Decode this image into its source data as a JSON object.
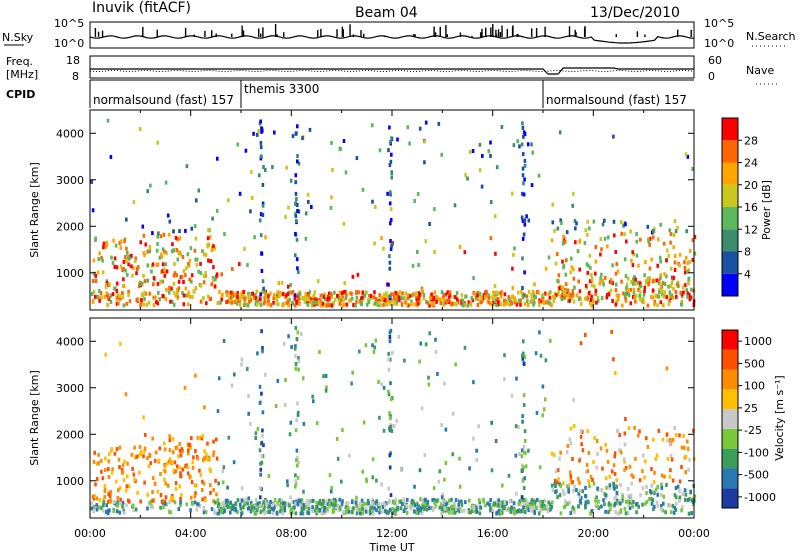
{
  "header": {
    "station": "Inuvik (fitACF)",
    "beam": "Beam 04",
    "date": "13/Dec/2010"
  },
  "panels": {
    "nsky": {
      "label": "N.Sky",
      "tick_top": "10^5",
      "tick_bottom": "10^0",
      "right_label": "N.Search",
      "right_tick_top": "10^5",
      "right_tick_bottom": "10^0"
    },
    "freq": {
      "label_line1": "Freq.",
      "label_line2": "[MHz]",
      "tick_top": "18",
      "tick_bottom": "8",
      "right_label": "Nave",
      "right_tick_top": "60",
      "right_tick_bottom": "0"
    },
    "cpid": {
      "label": "CPID",
      "segments": [
        {
          "label": "normalsound (fast) 157",
          "start_hour": 0
        },
        {
          "label": "themis 3300",
          "start_hour": 6
        },
        {
          "label": "normalsound (fast) 157",
          "start_hour": 18
        }
      ]
    }
  },
  "chart_data": [
    {
      "type": "heatmap",
      "name": "power",
      "ylabel": "Slant Range [km]",
      "xlabel": "",
      "ylim": [
        200,
        4500
      ],
      "xlim_hours": [
        0,
        24
      ],
      "y_ticks": [
        "1000",
        "2000",
        "3000",
        "4000"
      ],
      "colorbar": {
        "label": "Power [dB]",
        "ticks": [
          "4",
          "8",
          "12",
          "16",
          "20",
          "24",
          "28"
        ],
        "colors": [
          "#0000ff",
          "#1a50a0",
          "#3c8c6e",
          "#5cb85c",
          "#c8c81e",
          "#ffa500",
          "#ff6600",
          "#ff0000"
        ]
      }
    },
    {
      "type": "heatmap",
      "name": "velocity",
      "ylabel": "Slant Range [km]",
      "xlabel": "Time UT",
      "ylim": [
        200,
        4500
      ],
      "xlim_hours": [
        0,
        24
      ],
      "y_ticks": [
        "1000",
        "2000",
        "3000",
        "4000"
      ],
      "x_ticks": [
        "00:00",
        "04:00",
        "08:00",
        "12:00",
        "16:00",
        "20:00",
        "00:00"
      ],
      "colorbar": {
        "label": "Velocity [m s⁻¹]",
        "ticks": [
          "1000",
          "500",
          "100",
          "25",
          "-25",
          "-100",
          "-500",
          "-1000"
        ],
        "colors": [
          "#1a3ca0",
          "#2a78b0",
          "#3c9c5a",
          "#78c83c",
          "#c8c8c8",
          "#ffc000",
          "#ff8c00",
          "#ff5000",
          "#ff0000"
        ]
      }
    }
  ]
}
